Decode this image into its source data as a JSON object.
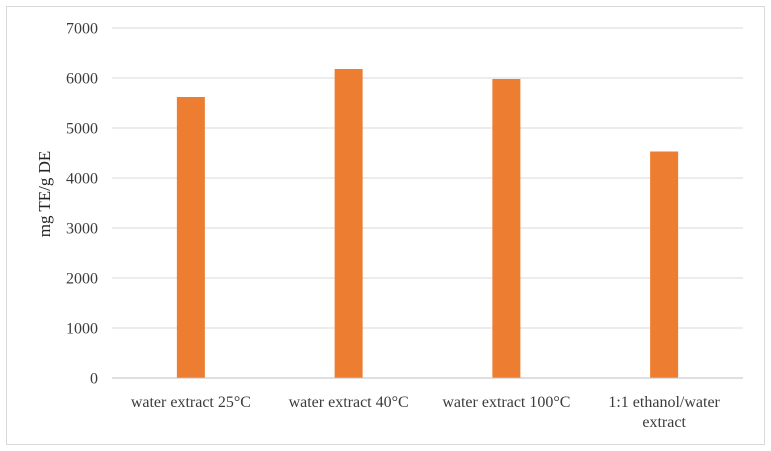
{
  "chart_data": {
    "type": "bar",
    "title": "",
    "xlabel": "",
    "ylabel": "mg TE/g DE",
    "categories": [
      [
        "water extract 25°C"
      ],
      [
        "water extract 40°C"
      ],
      [
        "water extract 100°C"
      ],
      [
        "1:1 ethanol/water",
        "extract"
      ]
    ],
    "values": [
      5620,
      6180,
      5980,
      4530
    ],
    "ylim": [
      0,
      7000
    ],
    "yticks": [
      0,
      1000,
      2000,
      3000,
      4000,
      5000,
      6000,
      7000
    ],
    "grid": true,
    "legend": "none",
    "colors": {
      "bar": "#ED7D31",
      "grid": "#D9D9D9",
      "axis": "#BFBFBF",
      "frame": "#D9D9D9"
    }
  }
}
